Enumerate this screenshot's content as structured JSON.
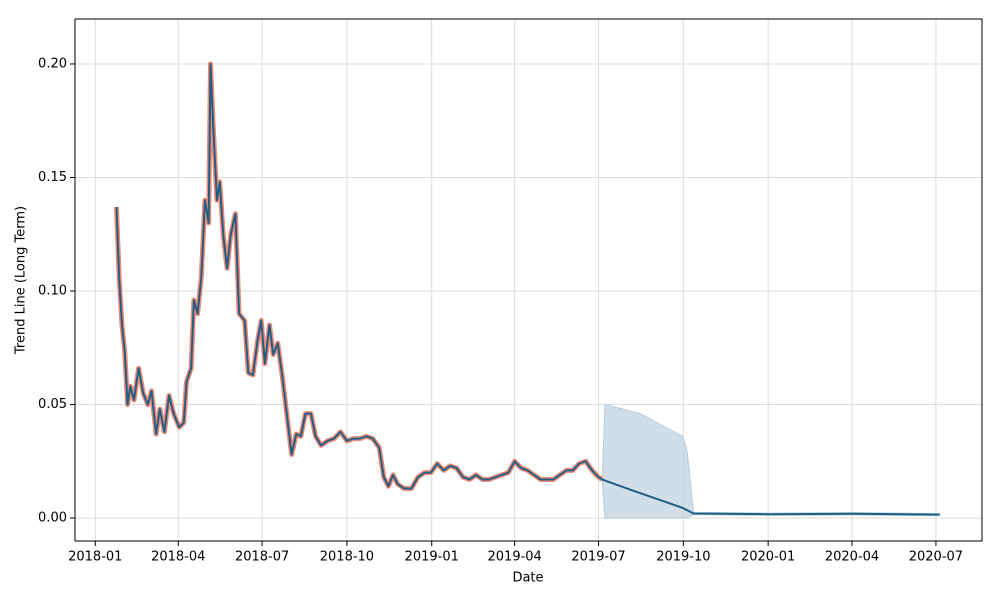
{
  "chart_data": {
    "type": "line",
    "xlabel": "Date",
    "ylabel": "Trend Line (Long Term)",
    "xlim": [
      "2017-12-10",
      "2020-08-20"
    ],
    "ylim": [
      -0.0101,
      0.2198
    ],
    "xticks": [
      {
        "value": "2018-01-01",
        "label": "2018-01"
      },
      {
        "value": "2018-04-01",
        "label": "2018-04"
      },
      {
        "value": "2018-07-01",
        "label": "2018-07"
      },
      {
        "value": "2018-10-01",
        "label": "2018-10"
      },
      {
        "value": "2019-01-01",
        "label": "2019-01"
      },
      {
        "value": "2019-04-01",
        "label": "2019-04"
      },
      {
        "value": "2019-07-01",
        "label": "2019-07"
      },
      {
        "value": "2019-10-01",
        "label": "2019-10"
      },
      {
        "value": "2020-01-01",
        "label": "2020-01"
      },
      {
        "value": "2020-04-01",
        "label": "2020-04"
      },
      {
        "value": "2020-07-01",
        "label": "2020-07"
      }
    ],
    "yticks": [
      {
        "value": 0,
        "label": "0.00"
      },
      {
        "value": 0.05,
        "label": "0.05"
      },
      {
        "value": 0.1,
        "label": "0.10"
      },
      {
        "value": 0.15,
        "label": "0.15"
      },
      {
        "value": 0.2,
        "label": "0.20"
      }
    ],
    "grid": true,
    "x": [
      "2018-01-24",
      "2018-01-27",
      "2018-01-30",
      "2018-02-02",
      "2018-02-05",
      "2018-02-08",
      "2018-02-12",
      "2018-02-17",
      "2018-02-22",
      "2018-02-27",
      "2018-03-03",
      "2018-03-08",
      "2018-03-12",
      "2018-03-17",
      "2018-03-22",
      "2018-03-27",
      "2018-04-02",
      "2018-04-07",
      "2018-04-10",
      "2018-04-15",
      "2018-04-18",
      "2018-04-22",
      "2018-04-26",
      "2018-04-30",
      "2018-05-04",
      "2018-05-06",
      "2018-05-09",
      "2018-05-13",
      "2018-05-16",
      "2018-05-20",
      "2018-05-24",
      "2018-05-28",
      "2018-06-02",
      "2018-06-06",
      "2018-06-12",
      "2018-06-16",
      "2018-06-21",
      "2018-06-26",
      "2018-06-30",
      "2018-07-04",
      "2018-07-09",
      "2018-07-13",
      "2018-07-18",
      "2018-07-23",
      "2018-07-28",
      "2018-08-02",
      "2018-08-07",
      "2018-08-12",
      "2018-08-17",
      "2018-08-23",
      "2018-08-28",
      "2018-09-03",
      "2018-09-10",
      "2018-09-17",
      "2018-09-24",
      "2018-10-01",
      "2018-10-08",
      "2018-10-15",
      "2018-10-22",
      "2018-10-29",
      "2018-11-05",
      "2018-11-10",
      "2018-11-15",
      "2018-11-20",
      "2018-11-25",
      "2018-12-02",
      "2018-12-10",
      "2018-12-17",
      "2018-12-24",
      "2018-12-31",
      "2019-01-07",
      "2019-01-14",
      "2019-01-21",
      "2019-01-28",
      "2019-02-04",
      "2019-02-11",
      "2019-02-18",
      "2019-02-25",
      "2019-03-04",
      "2019-03-11",
      "2019-03-18",
      "2019-03-25",
      "2019-04-01",
      "2019-04-08",
      "2019-04-15",
      "2019-04-22",
      "2019-04-29",
      "2019-05-06",
      "2019-05-13",
      "2019-05-20",
      "2019-05-27",
      "2019-06-03",
      "2019-06-10",
      "2019-06-17",
      "2019-06-24",
      "2019-07-01",
      "2019-07-05",
      "2019-07-08",
      "2019-08-15",
      "2019-09-30",
      "2019-10-05",
      "2019-10-12",
      "2020-01-01",
      "2020-04-01",
      "2020-07-05"
    ],
    "band": {
      "color": "#b9cddb",
      "upper": [
        null,
        null,
        null,
        null,
        null,
        null,
        null,
        null,
        null,
        null,
        null,
        null,
        null,
        null,
        null,
        null,
        null,
        null,
        null,
        null,
        null,
        null,
        null,
        null,
        null,
        null,
        null,
        null,
        null,
        null,
        null,
        null,
        null,
        null,
        null,
        null,
        null,
        null,
        null,
        null,
        null,
        null,
        null,
        null,
        null,
        null,
        null,
        null,
        null,
        null,
        null,
        null,
        null,
        null,
        null,
        null,
        null,
        null,
        null,
        null,
        null,
        null,
        null,
        null,
        null,
        null,
        null,
        null,
        null,
        null,
        null,
        null,
        null,
        null,
        null,
        null,
        null,
        null,
        null,
        null,
        null,
        null,
        null,
        null,
        null,
        null,
        null,
        null,
        null,
        null,
        null,
        null,
        null,
        null,
        null,
        null,
        0.017,
        0.05,
        0.046,
        0.036,
        0.03,
        0.0025,
        0.0022,
        0.0024,
        0.002
      ],
      "lower": [
        null,
        null,
        null,
        null,
        null,
        null,
        null,
        null,
        null,
        null,
        null,
        null,
        null,
        null,
        null,
        null,
        null,
        null,
        null,
        null,
        null,
        null,
        null,
        null,
        null,
        null,
        null,
        null,
        null,
        null,
        null,
        null,
        null,
        null,
        null,
        null,
        null,
        null,
        null,
        null,
        null,
        null,
        null,
        null,
        null,
        null,
        null,
        null,
        null,
        null,
        null,
        null,
        null,
        null,
        null,
        null,
        null,
        null,
        null,
        null,
        null,
        null,
        null,
        null,
        null,
        null,
        null,
        null,
        null,
        null,
        null,
        null,
        null,
        null,
        null,
        null,
        null,
        null,
        null,
        null,
        null,
        null,
        null,
        null,
        null,
        null,
        null,
        null,
        null,
        null,
        null,
        null,
        null,
        null,
        null,
        null,
        0.017,
        0,
        0,
        0,
        0,
        0.0015,
        0.0012,
        0.0014,
        0.001
      ]
    },
    "series": [
      {
        "color": "#f08a78",
        "width": 5,
        "values": [
          0.137,
          0.105,
          0.085,
          0.073,
          0.05,
          0.058,
          0.052,
          0.066,
          0.055,
          0.05,
          0.056,
          0.037,
          0.048,
          0.038,
          0.054,
          0.046,
          0.04,
          0.042,
          0.06,
          0.066,
          0.096,
          0.09,
          0.106,
          0.14,
          0.13,
          0.2,
          0.172,
          0.14,
          0.148,
          0.124,
          0.11,
          0.125,
          0.134,
          0.09,
          0.087,
          0.064,
          0.063,
          0.078,
          0.087,
          0.068,
          0.085,
          0.072,
          0.077,
          0.062,
          0.045,
          0.028,
          0.037,
          0.036,
          0.046,
          0.046,
          0.036,
          0.032,
          0.034,
          0.035,
          0.038,
          0.034,
          0.035,
          0.035,
          0.036,
          0.035,
          0.031,
          0.018,
          0.014,
          0.019,
          0.015,
          0.013,
          0.013,
          0.018,
          0.02,
          0.02,
          0.024,
          0.021,
          0.023,
          0.022,
          0.018,
          0.017,
          0.019,
          0.017,
          0.017,
          0.018,
          0.019,
          0.02,
          0.025,
          0.022,
          0.021,
          0.019,
          0.017,
          0.017,
          0.017,
          0.019,
          0.021,
          0.021,
          0.024,
          0.025,
          0.021,
          0.018,
          0.017,
          null,
          null,
          null,
          null,
          null,
          null,
          null,
          null
        ]
      },
      {
        "color": "#1f5f85",
        "width": 2,
        "values": [
          0.137,
          0.105,
          0.085,
          0.073,
          0.05,
          0.058,
          0.052,
          0.066,
          0.055,
          0.05,
          0.056,
          0.037,
          0.048,
          0.038,
          0.054,
          0.046,
          0.04,
          0.042,
          0.06,
          0.066,
          0.096,
          0.09,
          0.106,
          0.14,
          0.13,
          0.2,
          0.172,
          0.14,
          0.148,
          0.124,
          0.11,
          0.125,
          0.134,
          0.09,
          0.087,
          0.064,
          0.063,
          0.078,
          0.087,
          0.068,
          0.085,
          0.072,
          0.077,
          0.062,
          0.045,
          0.028,
          0.037,
          0.036,
          0.046,
          0.046,
          0.036,
          0.032,
          0.034,
          0.035,
          0.038,
          0.034,
          0.035,
          0.035,
          0.036,
          0.035,
          0.031,
          0.018,
          0.014,
          0.019,
          0.015,
          0.013,
          0.013,
          0.018,
          0.02,
          0.02,
          0.024,
          0.021,
          0.023,
          0.022,
          0.018,
          0.017,
          0.019,
          0.017,
          0.017,
          0.018,
          0.019,
          0.02,
          0.025,
          0.022,
          0.021,
          0.019,
          0.017,
          0.017,
          0.017,
          0.019,
          0.021,
          0.021,
          0.024,
          0.025,
          0.021,
          0.018,
          0.017,
          0.0165,
          0.011,
          0.0045,
          0.0035,
          0.002,
          0.0017,
          0.0019,
          0.0015
        ]
      }
    ]
  }
}
